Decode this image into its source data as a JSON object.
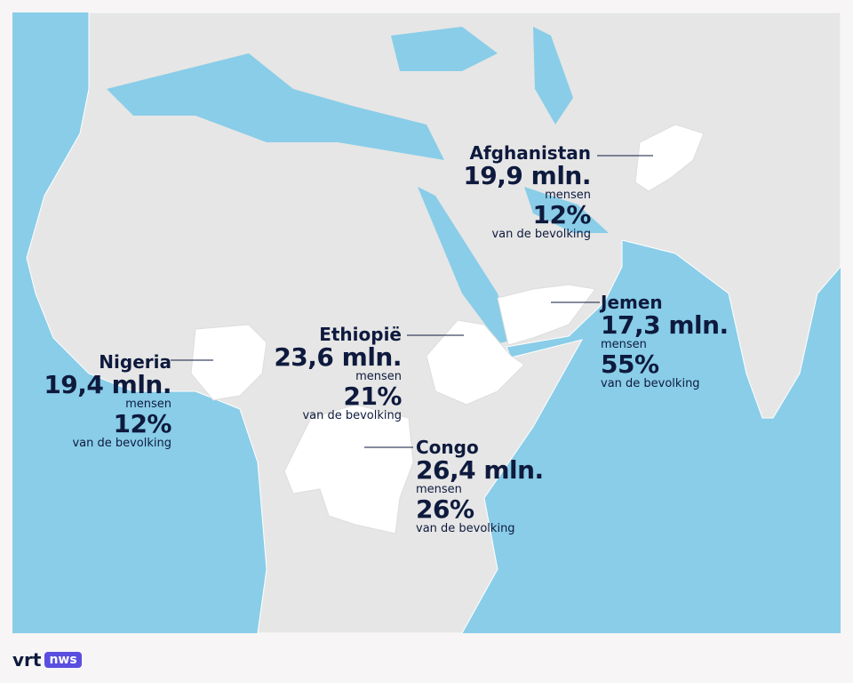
{
  "countries": [
    {
      "name": "Afghanistan",
      "people": "19,9 mln.",
      "people_label": "mensen",
      "share": "12%",
      "share_label": "van de bevolking"
    },
    {
      "name": "Jemen",
      "people": "17,3 mln.",
      "people_label": "mensen",
      "share": "55%",
      "share_label": "van de bevolking"
    },
    {
      "name": "Ethiopië",
      "people": "23,6 mln.",
      "people_label": "mensen",
      "share": "21%",
      "share_label": "van de bevolking"
    },
    {
      "name": "Nigeria",
      "people": "19,4 mln.",
      "people_label": "mensen",
      "share": "12%",
      "share_label": "van de bevolking"
    },
    {
      "name": "Congo",
      "people": "26,4 mln.",
      "people_label": "mensen",
      "share": "26%",
      "share_label": "van de bevolking"
    }
  ],
  "logo": {
    "brand": "vrt",
    "badge": "nws"
  }
}
